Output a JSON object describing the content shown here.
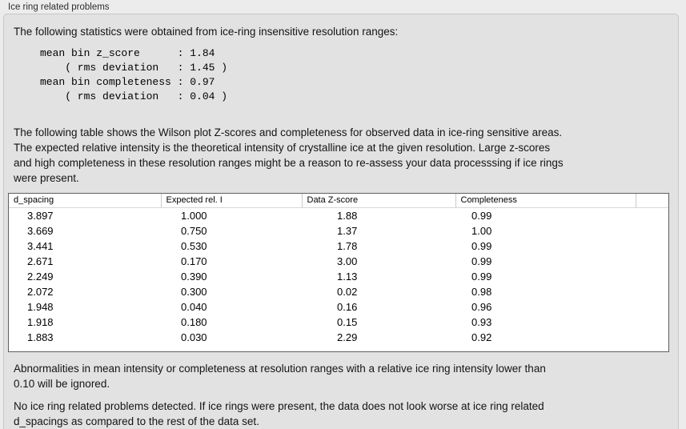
{
  "colors": {
    "page_background": "#ececec",
    "panel_background": "#e2e2e2",
    "panel_border": "#c6c6c6",
    "table_background": "#ffffff",
    "table_border": "#5f5f5f",
    "text": "#141414"
  },
  "panel": {
    "title": "Ice ring related problems"
  },
  "statistics": {
    "intro": "The following statistics were obtained from ice-ring insensitive resolution ranges:",
    "block": "mean bin z_score      : 1.84\n    ( rms deviation   : 1.45 )\nmean bin completeness : 0.97\n    ( rms deviation   : 0.04 )",
    "mean_bin_z_score": "1.84",
    "z_score_rms_deviation": "1.45",
    "mean_bin_completeness": "0.97",
    "completeness_rms_deviation": "0.04"
  },
  "table_section": {
    "description": "The following table shows the Wilson plot Z-scores and completeness for observed data in ice-ring sensitive areas.\nThe expected relative intensity is the theoretical intensity of crystalline ice at the given resolution. Large z-scores\nand high completeness in these resolution ranges might be a reason to re-assess your data processsing if ice rings\nwere present.",
    "table": {
      "headers": [
        "d_spacing",
        "Expected rel. I",
        "Data Z-score",
        "Completeness"
      ],
      "rows": [
        [
          "3.897",
          "1.000",
          "1.88",
          "0.99"
        ],
        [
          "3.669",
          "0.750",
          "1.37",
          "1.00"
        ],
        [
          "3.441",
          "0.530",
          "1.78",
          "0.99"
        ],
        [
          "2.671",
          "0.170",
          "3.00",
          "0.99"
        ],
        [
          "2.249",
          "0.390",
          "1.13",
          "0.99"
        ],
        [
          "2.072",
          "0.300",
          "0.02",
          "0.98"
        ],
        [
          "1.948",
          "0.040",
          "0.16",
          "0.96"
        ],
        [
          "1.918",
          "0.180",
          "0.15",
          "0.93"
        ],
        [
          "1.883",
          "0.030",
          "2.29",
          "0.92"
        ]
      ]
    }
  },
  "notes": {
    "ignore_note": "Abnormalities in mean intensity or completeness at resolution ranges with a relative ice ring intensity lower than\n0.10 will be ignored.",
    "conclusion": "No ice ring related problems detected. If ice rings were present, the data does not look worse at ice ring related\nd_spacings as compared to the rest of the data set."
  }
}
